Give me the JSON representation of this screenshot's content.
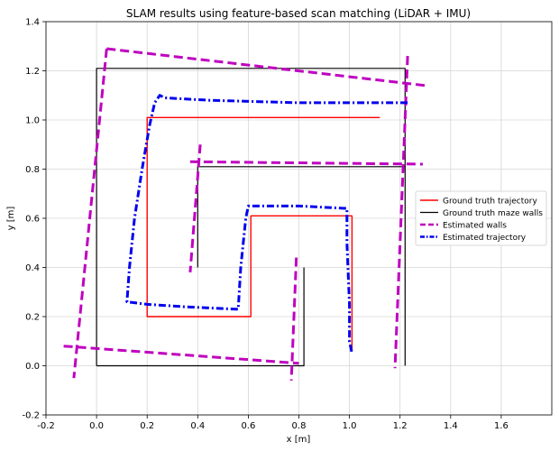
{
  "chart_data": {
    "type": "line",
    "title": "SLAM results using feature-based scan matching (LiDAR + IMU)",
    "xlabel": "x [m]",
    "ylabel": "y [m]",
    "xlim": [
      -0.2,
      1.8
    ],
    "ylim": [
      -0.2,
      1.4
    ],
    "xticks": [
      -0.2,
      0.0,
      0.2,
      0.4,
      0.6,
      0.8,
      1.0,
      1.2,
      1.4,
      1.6
    ],
    "yticks": [
      -0.2,
      0.0,
      0.2,
      0.4,
      0.6,
      0.8,
      1.0,
      1.2,
      1.4
    ],
    "grid": true,
    "legend_position": "center-right",
    "colors": {
      "ground_truth_trajectory": "#ff0000",
      "ground_truth_walls": "#000000",
      "estimated_walls": "#bf00bf",
      "estimated_trajectory": "#0000ee"
    },
    "series": [
      {
        "name": "Ground truth trajectory",
        "style": "solid",
        "segments": [
          [
            [
              1.12,
              1.01
            ],
            [
              0.2,
              1.01
            ],
            [
              0.2,
              0.2
            ],
            [
              0.61,
              0.2
            ],
            [
              0.61,
              0.61
            ],
            [
              1.01,
              0.61
            ],
            [
              1.01,
              0.06
            ]
          ]
        ]
      },
      {
        "name": "Ground truth maze walls",
        "style": "solid",
        "segments": [
          [
            [
              0.0,
              0.0
            ],
            [
              0.0,
              1.21
            ],
            [
              1.22,
              1.21
            ],
            [
              1.22,
              0.0
            ]
          ],
          [
            [
              0.0,
              0.0
            ],
            [
              0.82,
              0.0
            ],
            [
              0.82,
              0.4
            ]
          ],
          [
            [
              0.4,
              0.4
            ],
            [
              0.4,
              0.81
            ],
            [
              1.22,
              0.81
            ]
          ]
        ]
      },
      {
        "name": "Estimated walls",
        "style": "dashed",
        "segments": [
          [
            [
              0.04,
              1.29
            ],
            [
              1.3,
              1.14
            ]
          ],
          [
            [
              0.04,
              1.29
            ],
            [
              -0.09,
              -0.05
            ]
          ],
          [
            [
              -0.13,
              0.08
            ],
            [
              0.8,
              0.01
            ]
          ],
          [
            [
              0.79,
              0.44
            ],
            [
              0.77,
              -0.06
            ]
          ],
          [
            [
              0.37,
              0.83
            ],
            [
              1.29,
              0.82
            ]
          ],
          [
            [
              0.41,
              0.9
            ],
            [
              0.37,
              0.38
            ]
          ],
          [
            [
              1.23,
              1.26
            ],
            [
              1.18,
              -0.01
            ]
          ]
        ]
      },
      {
        "name": "Estimated trajectory",
        "style": "dashdot",
        "segments": [
          [
            [
              1.23,
              1.07
            ],
            [
              0.8,
              1.07
            ],
            [
              0.45,
              1.08
            ],
            [
              0.27,
              1.09
            ],
            [
              0.25,
              1.1
            ],
            [
              0.23,
              1.07
            ],
            [
              0.21,
              0.98
            ],
            [
              0.18,
              0.8
            ],
            [
              0.15,
              0.6
            ],
            [
              0.13,
              0.4
            ],
            [
              0.12,
              0.26
            ],
            [
              0.2,
              0.25
            ],
            [
              0.35,
              0.24
            ],
            [
              0.55,
              0.23
            ],
            [
              0.56,
              0.23
            ],
            [
              0.57,
              0.4
            ],
            [
              0.59,
              0.6
            ],
            [
              0.6,
              0.65
            ],
            [
              0.8,
              0.65
            ],
            [
              0.99,
              0.64
            ],
            [
              0.99,
              0.5
            ],
            [
              1.0,
              0.25
            ],
            [
              1.0,
              0.1
            ],
            [
              1.01,
              0.05
            ]
          ]
        ]
      }
    ]
  }
}
